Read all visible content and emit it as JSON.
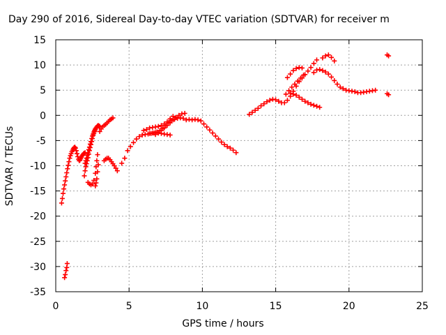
{
  "chart_data": {
    "type": "scatter",
    "title": "Day 290 of 2016, Sidereal Day-to-day VTEC variation (SDTVAR) for receiver m",
    "xlabel": "GPS time / hours",
    "ylabel": "SDTVAR / TECUs",
    "xlim": [
      0,
      25
    ],
    "ylim": [
      -35,
      15
    ],
    "xticks": [
      "0",
      "5",
      "10",
      "15",
      "20",
      "25"
    ],
    "yticks": [
      "15",
      "10",
      "5",
      "0",
      "-5",
      "-10",
      "-15",
      "-20",
      "-25",
      "-30",
      "-35"
    ],
    "grid": true,
    "marker": "+",
    "color": "#ff0000",
    "series": [
      {
        "x": [
          0.4,
          0.45,
          0.5,
          0.55,
          0.6,
          0.65,
          0.7,
          0.75,
          0.8,
          0.85,
          0.9,
          0.95,
          1.0,
          1.05,
          1.1,
          1.15,
          1.2,
          1.25,
          1.3,
          1.35,
          1.4,
          1.45,
          1.5,
          1.55,
          1.6,
          1.65,
          1.7,
          1.75,
          1.8,
          1.85,
          1.9,
          1.95,
          2.0,
          0.6,
          0.65,
          0.7,
          0.75,
          0.78,
          1.95,
          2.0,
          2.05,
          2.1,
          2.15,
          2.2,
          2.25,
          2.3,
          2.35,
          2.4,
          2.45,
          2.5,
          2.55,
          2.6,
          2.65,
          2.7,
          2.75,
          2.8,
          2.85,
          2.9,
          2.95,
          3.0,
          2.0,
          2.05,
          2.1,
          2.15,
          2.2,
          2.25,
          2.3,
          2.35,
          2.4,
          2.45,
          2.5,
          2.55,
          2.6,
          2.65,
          2.7,
          2.2,
          2.3,
          2.4,
          2.5,
          2.6,
          2.7,
          2.75,
          2.8,
          2.85,
          2.7,
          2.75,
          2.8,
          2.85,
          2.9,
          3.0,
          3.1,
          3.2,
          3.3,
          3.4,
          3.5,
          3.6,
          3.7,
          3.8,
          3.9,
          3.3,
          3.4,
          3.5,
          3.6,
          3.7,
          3.8,
          3.9,
          4.0,
          4.1,
          4.2,
          4.5,
          4.7,
          4.9,
          5.1,
          5.3,
          5.5,
          5.7,
          5.9,
          6.1,
          6.3,
          6.5,
          6.7,
          6.9,
          7.1,
          7.3,
          7.5,
          7.7,
          7.9,
          8.1,
          8.3,
          8.5,
          8.7,
          8.9,
          9.1,
          9.3,
          9.5,
          9.7,
          9.9,
          10.1,
          10.3,
          10.5,
          10.7,
          10.9,
          11.1,
          11.3,
          11.5,
          11.7,
          11.9,
          12.1,
          12.3,
          6.0,
          6.2,
          6.4,
          6.6,
          6.8,
          7.0,
          7.2,
          7.4,
          7.6,
          7.8,
          8.0,
          6.4,
          6.6,
          6.8,
          7.0,
          7.2,
          7.4,
          7.6,
          7.8,
          6.8,
          7.0,
          7.2,
          7.4,
          7.6,
          7.8,
          8.0,
          8.2,
          8.4,
          8.6,
          8.8,
          13.2,
          13.4,
          13.6,
          13.8,
          14.0,
          14.2,
          14.4,
          14.6,
          14.8,
          15.0,
          15.2,
          15.4,
          15.6,
          15.8,
          16.0,
          16.2,
          16.4,
          16.6,
          16.8,
          17.0,
          17.2,
          17.4,
          17.6,
          17.8,
          15.7,
          15.9,
          16.1,
          16.3,
          16.5,
          16.7,
          16.9,
          15.8,
          16.0,
          16.2,
          16.4,
          16.6,
          16.8,
          16.0,
          16.2,
          16.4,
          16.6,
          16.8,
          17.0,
          17.2,
          17.4,
          17.6,
          17.8,
          18.0,
          17.6,
          17.8,
          18.0,
          18.2,
          18.4,
          18.6,
          18.8,
          19.0,
          19.2,
          19.4,
          19.6,
          19.8,
          20.0,
          20.2,
          20.4,
          20.6,
          20.8,
          21.0,
          21.2,
          21.4,
          21.6,
          21.8,
          18.2,
          18.4,
          18.6,
          18.8,
          19.0,
          22.6,
          22.7,
          22.6,
          22.7
        ],
        "y": [
          -17.4,
          -16.5,
          -15.5,
          -14.6,
          -13.8,
          -13.0,
          -12.2,
          -11.4,
          -10.6,
          -9.9,
          -9.2,
          -8.5,
          -8.0,
          -7.6,
          -7.2,
          -6.9,
          -6.6,
          -6.4,
          -6.3,
          -6.5,
          -7.0,
          -7.6,
          -8.2,
          -8.7,
          -9.0,
          -8.9,
          -8.6,
          -8.3,
          -8.0,
          -7.8,
          -7.6,
          -7.5,
          -7.4,
          -32.2,
          -31.6,
          -30.8,
          -30.2,
          -29.4,
          -12.0,
          -11.0,
          -10.2,
          -9.6,
          -9.0,
          -8.4,
          -7.7,
          -7.0,
          -6.4,
          -5.8,
          -5.2,
          -4.6,
          -4.0,
          -3.6,
          -3.2,
          -2.8,
          -2.5,
          -2.3,
          -2.1,
          -2.0,
          -2.1,
          -2.2,
          -9.5,
          -9.0,
          -8.5,
          -7.9,
          -7.4,
          -6.8,
          -6.3,
          -5.7,
          -5.2,
          -4.6,
          -4.1,
          -3.7,
          -3.3,
          -3.0,
          -2.7,
          -13.3,
          -13.6,
          -13.8,
          -13.6,
          -12.9,
          -11.5,
          -10.2,
          -9.0,
          -7.8,
          -14.0,
          -13.4,
          -12.6,
          -11.2,
          -9.8,
          -3.2,
          -2.7,
          -2.3,
          -2.0,
          -1.8,
          -1.5,
          -1.2,
          -0.9,
          -0.7,
          -0.5,
          -9.0,
          -8.7,
          -8.5,
          -8.5,
          -8.8,
          -9.2,
          -9.6,
          -10.0,
          -10.5,
          -11.0,
          -9.5,
          -8.5,
          -7.0,
          -6.2,
          -5.4,
          -4.7,
          -4.2,
          -3.9,
          -3.8,
          -3.7,
          -3.6,
          -3.5,
          -3.3,
          -3.0,
          -2.6,
          -2.0,
          -1.4,
          -1.0,
          -0.8,
          -0.6,
          -0.5,
          -0.6,
          -0.9,
          -0.8,
          -0.9,
          -0.8,
          -0.9,
          -1.1,
          -1.7,
          -2.3,
          -2.9,
          -3.5,
          -4.1,
          -4.7,
          -5.3,
          -5.8,
          -6.2,
          -6.5,
          -6.9,
          -7.4,
          -3.0,
          -2.8,
          -2.5,
          -2.4,
          -2.3,
          -2.2,
          -2.0,
          -1.7,
          -1.3,
          -0.7,
          -0.2,
          -3.6,
          -3.5,
          -3.4,
          -3.5,
          -3.6,
          -3.7,
          -3.8,
          -3.9,
          -3.8,
          -3.5,
          -3.0,
          -2.5,
          -2.0,
          -1.5,
          -0.9,
          -0.4,
          0.0,
          0.3,
          0.4,
          0.2,
          0.6,
          1.0,
          1.4,
          1.9,
          2.3,
          2.7,
          3.0,
          3.2,
          3.1,
          2.8,
          2.5,
          2.5,
          3.0,
          3.8,
          4.8,
          5.8,
          6.7,
          7.4,
          8.1,
          8.8,
          9.5,
          10.3,
          11.0,
          4.2,
          4.9,
          5.6,
          6.2,
          6.8,
          7.4,
          8.0,
          7.5,
          8.2,
          8.9,
          9.3,
          9.5,
          9.4,
          4.4,
          4.2,
          4.0,
          3.6,
          3.2,
          2.8,
          2.5,
          2.2,
          2.0,
          1.8,
          1.6,
          8.5,
          9.0,
          9.1,
          8.9,
          8.6,
          8.2,
          7.6,
          6.9,
          6.2,
          5.6,
          5.3,
          5.0,
          4.9,
          4.8,
          4.7,
          4.5,
          4.5,
          4.6,
          4.7,
          4.8,
          4.9,
          5.0,
          11.4,
          11.8,
          12.0,
          11.5,
          10.8,
          12.0,
          11.8,
          4.3,
          4.1
        ]
      }
    ]
  }
}
